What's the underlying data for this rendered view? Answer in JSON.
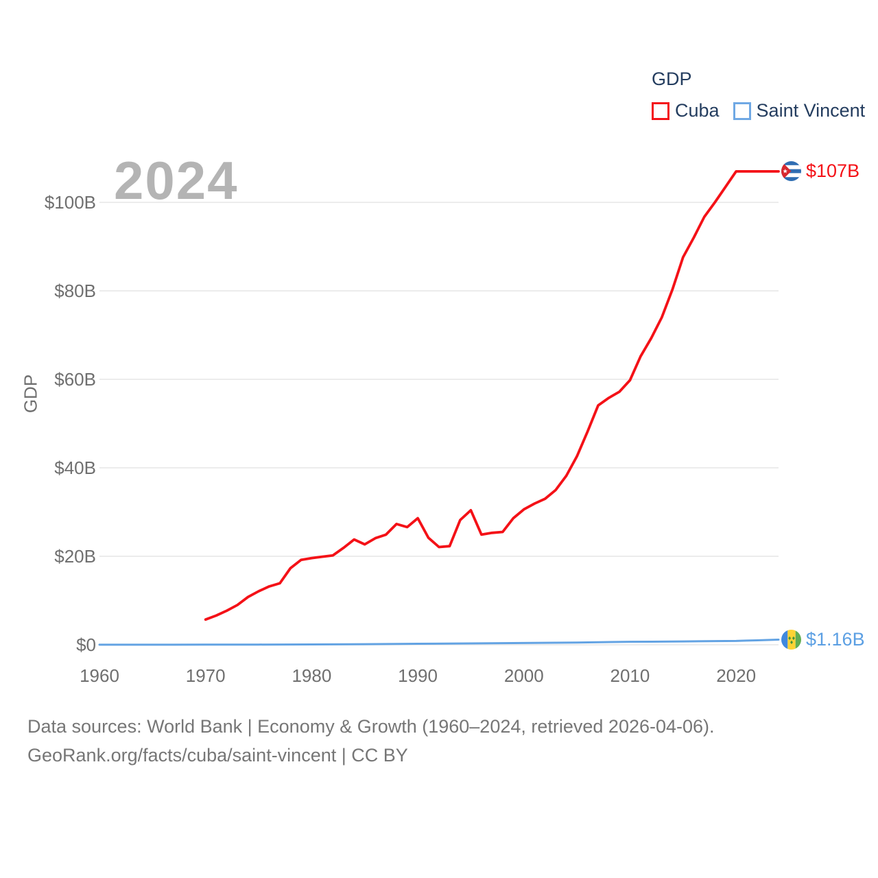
{
  "watermark_year": "2024",
  "legend": {
    "title": "GDP",
    "items": [
      {
        "label": "Cuba",
        "color": "#f41117"
      },
      {
        "label": "Saint Vincent",
        "color": "#6fa8e4"
      }
    ]
  },
  "y_axis_title": "GDP",
  "footer": {
    "line1": "Data sources: World Bank | Economy & Growth (1960–2024, retrieved 2026-04-06).",
    "line2": "GeoRank.org/facts/cuba/saint-vincent | CC BY"
  },
  "chart_data": {
    "type": "line",
    "title": "GDP",
    "ylabel": "GDP",
    "xlim": [
      1960,
      2024
    ],
    "ylim": [
      0,
      110
    ],
    "grid": "horizontal",
    "legend_position": "top-right",
    "x_ticks": [
      1960,
      1970,
      1980,
      1990,
      2000,
      2010,
      2020
    ],
    "y_ticks": {
      "values": [
        0,
        20,
        40,
        60,
        80,
        100
      ],
      "labels": [
        "$0",
        "$20B",
        "$40B",
        "$60B",
        "$80B",
        "$100B"
      ]
    },
    "series": [
      {
        "name": "Cuba",
        "color": "#f41117",
        "end_label": "$107B",
        "flag": "cuba-flag-icon",
        "points": [
          [
            1970,
            5.7
          ],
          [
            1971,
            6.6
          ],
          [
            1972,
            7.7
          ],
          [
            1973,
            9.0
          ],
          [
            1974,
            10.8
          ],
          [
            1975,
            12.1
          ],
          [
            1976,
            13.2
          ],
          [
            1977,
            13.9
          ],
          [
            1978,
            17.3
          ],
          [
            1979,
            19.2
          ],
          [
            1980,
            19.6
          ],
          [
            1981,
            19.9
          ],
          [
            1982,
            20.2
          ],
          [
            1983,
            21.9
          ],
          [
            1984,
            23.8
          ],
          [
            1985,
            22.7
          ],
          [
            1986,
            24.1
          ],
          [
            1987,
            24.9
          ],
          [
            1988,
            27.3
          ],
          [
            1989,
            26.6
          ],
          [
            1990,
            28.6
          ],
          [
            1991,
            24.2
          ],
          [
            1992,
            22.1
          ],
          [
            1993,
            22.3
          ],
          [
            1994,
            28.2
          ],
          [
            1995,
            30.4
          ],
          [
            1996,
            24.9
          ],
          [
            1997,
            25.3
          ],
          [
            1998,
            25.5
          ],
          [
            1999,
            28.6
          ],
          [
            2000,
            30.6
          ],
          [
            2001,
            31.9
          ],
          [
            2002,
            33.0
          ],
          [
            2003,
            35.0
          ],
          [
            2004,
            38.2
          ],
          [
            2005,
            42.6
          ],
          [
            2006,
            48.2
          ],
          [
            2007,
            54.1
          ],
          [
            2008,
            55.8
          ],
          [
            2009,
            57.2
          ],
          [
            2010,
            59.8
          ],
          [
            2011,
            65.2
          ],
          [
            2012,
            69.3
          ],
          [
            2013,
            74.0
          ],
          [
            2014,
            80.3
          ],
          [
            2015,
            87.6
          ],
          [
            2016,
            92.0
          ],
          [
            2017,
            96.7
          ],
          [
            2018,
            100.0
          ],
          [
            2019,
            103.5
          ],
          [
            2020,
            107.0
          ],
          [
            2021,
            107.0
          ],
          [
            2022,
            107.0
          ],
          [
            2023,
            107.0
          ],
          [
            2024,
            107.0
          ]
        ]
      },
      {
        "name": "Saint Vincent",
        "color": "#63a3e3",
        "end_label": "$1.16B",
        "flag": "saint-vincent-flag-icon",
        "points": [
          [
            1960,
            0.013
          ],
          [
            1965,
            0.019
          ],
          [
            1970,
            0.029
          ],
          [
            1975,
            0.048
          ],
          [
            1980,
            0.078
          ],
          [
            1985,
            0.135
          ],
          [
            1990,
            0.24
          ],
          [
            1995,
            0.31
          ],
          [
            2000,
            0.4
          ],
          [
            2005,
            0.5
          ],
          [
            2010,
            0.68
          ],
          [
            2012,
            0.7
          ],
          [
            2015,
            0.76
          ],
          [
            2018,
            0.83
          ],
          [
            2020,
            0.87
          ],
          [
            2021,
            0.94
          ],
          [
            2022,
            1.0
          ],
          [
            2023,
            1.08
          ],
          [
            2024,
            1.16
          ]
        ]
      }
    ]
  }
}
